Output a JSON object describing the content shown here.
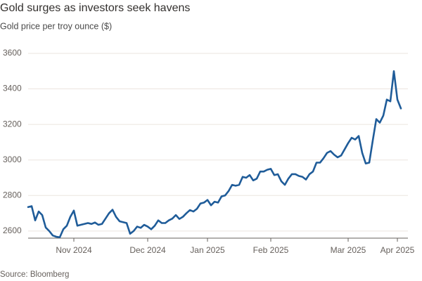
{
  "chart_data": {
    "type": "line",
    "title": "Gold surges as investors seek havens",
    "subtitle": "Gold price per troy ounce ($)",
    "source": "Source: Bloomberg",
    "categories": [
      null,
      null,
      null,
      null,
      null,
      null,
      null,
      null,
      null,
      null,
      null,
      null,
      null,
      "Nov 2024",
      null,
      null,
      null,
      null,
      null,
      null,
      null,
      null,
      null,
      null,
      null,
      null,
      null,
      null,
      null,
      null,
      null,
      null,
      null,
      null,
      "Dec 2024",
      null,
      null,
      null,
      null,
      null,
      null,
      null,
      null,
      null,
      null,
      null,
      null,
      null,
      null,
      null,
      null,
      "Jan 2025",
      null,
      null,
      null,
      null,
      null,
      null,
      null,
      null,
      null,
      null,
      null,
      null,
      null,
      null,
      null,
      null,
      null,
      "Feb 2025",
      null,
      null,
      null,
      null,
      null,
      null,
      null,
      null,
      null,
      null,
      null,
      null,
      null,
      null,
      null,
      null,
      null,
      null,
      null,
      null,
      null,
      "Mar 2025",
      null,
      null,
      null,
      null,
      null,
      null,
      null,
      null,
      null,
      null,
      null,
      null,
      null,
      "Apr 2025",
      null
    ],
    "values": [
      2735,
      2740,
      2660,
      2710,
      2690,
      2620,
      2600,
      2575,
      2568,
      2565,
      2610,
      2630,
      2680,
      2715,
      2630,
      2635,
      2640,
      2645,
      2640,
      2648,
      2635,
      2640,
      2670,
      2700,
      2720,
      2680,
      2655,
      2650,
      2645,
      2585,
      2600,
      2625,
      2618,
      2635,
      2625,
      2610,
      2630,
      2660,
      2645,
      2645,
      2660,
      2670,
      2690,
      2668,
      2680,
      2700,
      2718,
      2710,
      2725,
      2755,
      2760,
      2775,
      2745,
      2765,
      2760,
      2795,
      2800,
      2825,
      2860,
      2855,
      2860,
      2905,
      2900,
      2915,
      2885,
      2895,
      2935,
      2935,
      2945,
      2950,
      2915,
      2920,
      2880,
      2860,
      2895,
      2920,
      2920,
      2910,
      2905,
      2890,
      2920,
      2935,
      2985,
      2985,
      3010,
      3040,
      3050,
      3030,
      3015,
      3025,
      3060,
      3095,
      3125,
      3115,
      3135,
      3040,
      2980,
      2985,
      3110,
      3230,
      3210,
      3250,
      3340,
      3330,
      3500,
      3340,
      3290
    ],
    "color": "#1f5c99",
    "ylim": [
      2560,
      3660
    ],
    "yticks": [
      2600,
      2800,
      3000,
      3200,
      3400,
      3600
    ],
    "grid": true
  }
}
